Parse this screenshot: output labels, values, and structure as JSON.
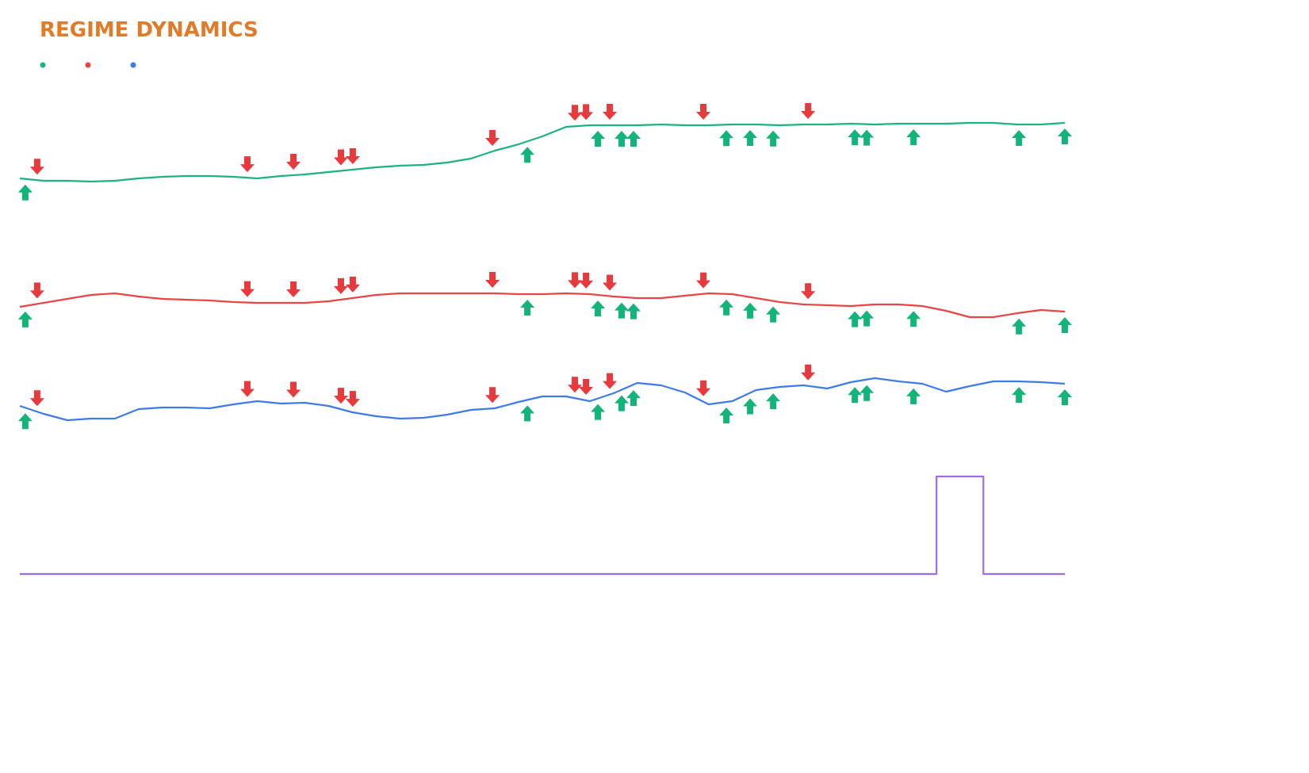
{
  "chart_data": {
    "type": "line",
    "title": "REGIME DYNAMICS",
    "xlim": [
      0,
      44
    ],
    "x": [
      0,
      1,
      2,
      3,
      4,
      5,
      6,
      7,
      8,
      9,
      10,
      11,
      12,
      13,
      14,
      15,
      16,
      17,
      18,
      19,
      20,
      21,
      22,
      23,
      24,
      25,
      26,
      27,
      28,
      29,
      30,
      31,
      32,
      33,
      34,
      35,
      36,
      37,
      38,
      39,
      40,
      41,
      42,
      43,
      44
    ],
    "series": [
      {
        "color": "#1db380",
        "ylim": [
          0,
          130
        ],
        "values": [
          25,
          22,
          22,
          21,
          22,
          25,
          27,
          28,
          28,
          27,
          25,
          28,
          30,
          33,
          36,
          39,
          41,
          42,
          45,
          50,
          60,
          68,
          78,
          90,
          92,
          92,
          92,
          93,
          92,
          92,
          93,
          93,
          92,
          93,
          93,
          94,
          93,
          94,
          94,
          94,
          95,
          95,
          93,
          93,
          95
        ]
      },
      {
        "color": "#e84545",
        "ylim": [
          0,
          130
        ],
        "values": [
          63,
          68,
          73,
          78,
          80,
          76,
          73,
          72,
          71,
          69,
          68,
          68,
          68,
          70,
          74,
          78,
          80,
          80,
          80,
          80,
          80,
          79,
          79,
          80,
          79,
          76,
          74,
          74,
          77,
          80,
          79,
          74,
          69,
          66,
          65,
          64,
          66,
          66,
          64,
          58,
          50,
          50,
          55,
          59,
          57
        ]
      },
      {
        "color": "#3d7be8",
        "ylim": [
          0,
          130
        ],
        "values": [
          48,
          38,
          30,
          32,
          32,
          44,
          46,
          46,
          45,
          50,
          54,
          51,
          52,
          48,
          40,
          35,
          32,
          33,
          37,
          43,
          45,
          53,
          60,
          60,
          54,
          64,
          77,
          74,
          65,
          50,
          54,
          68,
          72,
          74,
          70,
          78,
          83,
          79,
          76,
          66,
          73,
          79,
          79,
          78,
          76
        ]
      },
      {
        "color": "#9b6ee8",
        "ylim": [
          0,
          1
        ],
        "x": [
          0,
          38.6,
          38.6,
          40.57,
          40.57,
          44
        ],
        "values": [
          0,
          0,
          1,
          1,
          0,
          0
        ]
      }
    ],
    "signals": {
      "buy": {
        "color": "#13b47a",
        "x": [
          0.23,
          21.37,
          24.34,
          25.34,
          25.84,
          29.75,
          30.75,
          31.72,
          35.16,
          35.66,
          37.63,
          42.07,
          44
        ]
      },
      "sell": {
        "color": "#e8393d",
        "x": [
          0.73,
          9.58,
          11.52,
          13.52,
          14.02,
          19.9,
          23.37,
          23.84,
          24.84,
          28.78,
          33.19
        ]
      }
    }
  }
}
